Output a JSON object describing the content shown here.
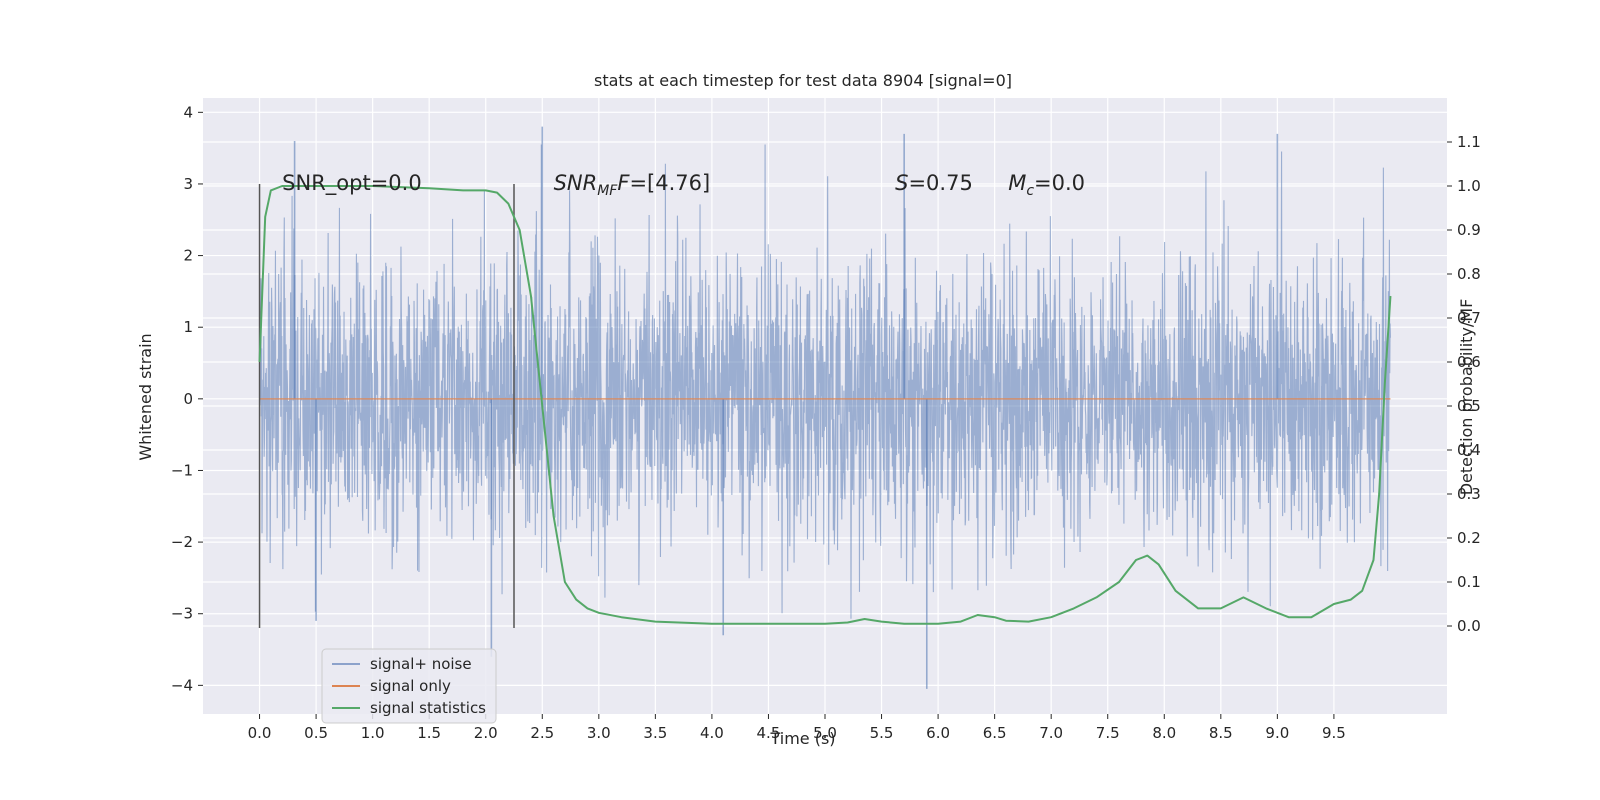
{
  "chart_data": {
    "type": "line",
    "title": "stats at each timestep for test data 8904 [signal=0]",
    "xlabel": "Time (s)",
    "ylabel": "Whitened strain",
    "y2label": "Detection probability/MF",
    "xlim": [
      -0.5,
      10.5
    ],
    "ylim": [
      -4.4,
      4.2
    ],
    "y2lim": [
      -0.2,
      1.2
    ],
    "xticks": [
      0.0,
      0.5,
      1.0,
      1.5,
      2.0,
      2.5,
      3.0,
      3.5,
      4.0,
      4.5,
      5.0,
      5.5,
      6.0,
      6.5,
      7.0,
      7.5,
      8.0,
      8.5,
      9.0,
      9.5
    ],
    "xtick_labels": [
      "0.0",
      "0.5",
      "1.0",
      "1.5",
      "2.0",
      "2.5",
      "3.0",
      "3.5",
      "4.0",
      "4.5",
      "5.0",
      "5.5",
      "6.0",
      "6.5",
      "7.0",
      "7.5",
      "8.0",
      "8.5",
      "9.0",
      "9.5"
    ],
    "yticks": [
      -4,
      -3,
      -2,
      -1,
      0,
      1,
      2,
      3,
      4
    ],
    "ytick_labels": [
      "−4",
      "−3",
      "−2",
      "−1",
      "0",
      "1",
      "2",
      "3",
      "4"
    ],
    "y2ticks": [
      0.0,
      0.1,
      0.2,
      0.3,
      0.4,
      0.5,
      0.6,
      0.7,
      0.8,
      0.9,
      1.0,
      1.1
    ],
    "y2tick_labels": [
      "0.0",
      "0.1",
      "0.2",
      "0.3",
      "0.4",
      "0.5",
      "0.6",
      "0.7",
      "0.8",
      "0.9",
      "1.0",
      "1.1"
    ],
    "series": [
      {
        "name": "signal+ noise",
        "axis": "left",
        "color": "#4c72b0",
        "note": "dense noise trace, 0.0–10.0 s; roughly gaussian, sigma ≈ 1, peaks ≈ ±3.8",
        "x_range": [
          0.0,
          10.0
        ],
        "noise_sigma": 1.0,
        "peaks": [
          {
            "x": 0.31,
            "y": 3.6
          },
          {
            "x": 2.5,
            "y": 3.8
          },
          {
            "x": 5.7,
            "y": 3.7
          },
          {
            "x": 9.0,
            "y": 3.7
          },
          {
            "x": 5.9,
            "y": -4.05
          },
          {
            "x": 2.05,
            "y": -3.6
          },
          {
            "x": 0.5,
            "y": -3.1
          },
          {
            "x": 4.1,
            "y": -3.3
          }
        ]
      },
      {
        "name": "signal only",
        "axis": "left",
        "color": "#dd8452",
        "x": [
          0.0,
          10.0
        ],
        "y": [
          0.0,
          0.0
        ]
      },
      {
        "name": "signal statistics",
        "axis": "right",
        "color": "#55a868",
        "x": [
          0.0,
          0.05,
          0.1,
          0.2,
          0.3,
          0.5,
          1.0,
          1.5,
          1.8,
          2.0,
          2.1,
          2.2,
          2.3,
          2.4,
          2.5,
          2.6,
          2.7,
          2.8,
          2.9,
          3.0,
          3.2,
          3.5,
          4.0,
          4.5,
          5.0,
          5.2,
          5.35,
          5.5,
          5.7,
          6.0,
          6.2,
          6.35,
          6.5,
          6.6,
          6.8,
          7.0,
          7.2,
          7.4,
          7.6,
          7.75,
          7.85,
          7.95,
          8.1,
          8.3,
          8.5,
          8.7,
          8.9,
          9.1,
          9.3,
          9.5,
          9.65,
          9.75,
          9.85,
          9.9,
          9.95,
          10.0
        ],
        "y": [
          0.6,
          0.93,
          0.99,
          1.0,
          1.0,
          1.0,
          1.0,
          0.995,
          0.99,
          0.99,
          0.985,
          0.96,
          0.9,
          0.75,
          0.5,
          0.25,
          0.1,
          0.06,
          0.04,
          0.03,
          0.02,
          0.01,
          0.005,
          0.005,
          0.005,
          0.008,
          0.016,
          0.01,
          0.005,
          0.005,
          0.01,
          0.025,
          0.02,
          0.012,
          0.01,
          0.02,
          0.04,
          0.065,
          0.1,
          0.15,
          0.16,
          0.14,
          0.08,
          0.04,
          0.04,
          0.065,
          0.04,
          0.02,
          0.02,
          0.05,
          0.06,
          0.08,
          0.15,
          0.3,
          0.55,
          0.75
        ]
      }
    ],
    "vlines": [
      {
        "x": 0.0,
        "y1": -3.2,
        "y2": 3.0,
        "color": "#555555"
      },
      {
        "x": 2.25,
        "y1": -3.2,
        "y2": 3.0,
        "color": "#555555"
      }
    ],
    "annotations": [
      {
        "parts": [
          {
            "t": "SNR_opt=0.0",
            "italic": false
          }
        ],
        "x": 0.2,
        "y": 3.0
      },
      {
        "parts": [
          {
            "t": "SNR",
            "italic": true
          },
          {
            "t": "MF",
            "italic": true,
            "sub": true
          },
          {
            "t": "F",
            "italic": true
          },
          {
            "t": "=[4.76]",
            "italic": false
          }
        ],
        "x": 2.6,
        "y": 3.0
      },
      {
        "parts": [
          {
            "t": "S",
            "italic": true
          },
          {
            "t": "=0.75",
            "italic": false
          }
        ],
        "x": 5.62,
        "y": 3.0
      },
      {
        "parts": [
          {
            "t": "M",
            "italic": true
          },
          {
            "t": "c",
            "italic": true,
            "sub": true
          },
          {
            "t": "=0.0",
            "italic": false
          }
        ],
        "x": 6.62,
        "y": 3.0
      }
    ],
    "legend": {
      "position": "lower-left",
      "items": [
        {
          "label": "signal+ noise",
          "color": "#4c72b0"
        },
        {
          "label": "signal only",
          "color": "#dd8452"
        },
        {
          "label": "signal statistics",
          "color": "#55a868"
        }
      ]
    },
    "grid": true,
    "background": "#eaeaf2"
  }
}
